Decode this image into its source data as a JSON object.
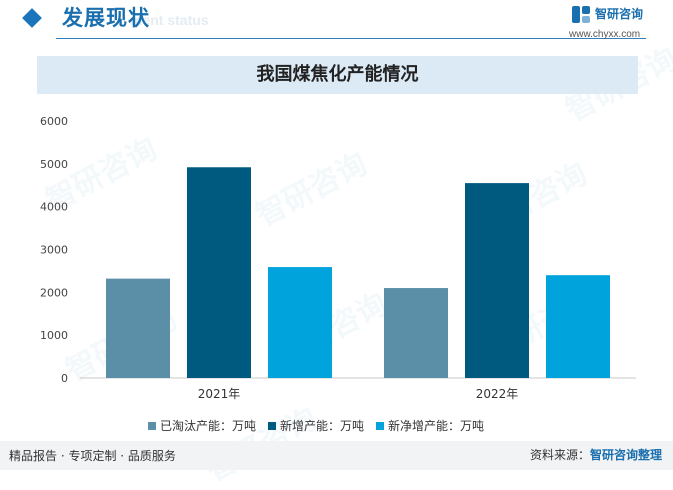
{
  "header": {
    "section_title": "发展现状",
    "section_title_en": "ment status",
    "logo_name": "智研咨询",
    "logo_url": "www.chyxx.com"
  },
  "watermark": {
    "text": "智研咨询"
  },
  "colors": {
    "accent": "#1a6fae",
    "series": [
      "#5b8fa8",
      "#005a7f",
      "#00a3dc"
    ]
  },
  "chart_data": {
    "type": "bar",
    "title": "我国煤焦化产能情况",
    "categories": [
      "2021年",
      "2022年"
    ],
    "series": [
      {
        "name": "已淘汰产能：万吨",
        "values": [
          2320,
          2100
        ]
      },
      {
        "name": "新增产能：万吨",
        "values": [
          4920,
          4550
        ]
      },
      {
        "name": "新净增产能：万吨",
        "values": [
          2590,
          2400
        ]
      }
    ],
    "ylim": [
      0,
      6000
    ],
    "yticks": [
      0,
      1000,
      2000,
      3000,
      4000,
      5000,
      6000
    ],
    "grid": false,
    "legend_position": "bottom"
  },
  "footer": {
    "left": "精品报告 · 专项定制 · 品质服务",
    "source_label": "资料来源：",
    "source_value": "智研咨询整理"
  }
}
